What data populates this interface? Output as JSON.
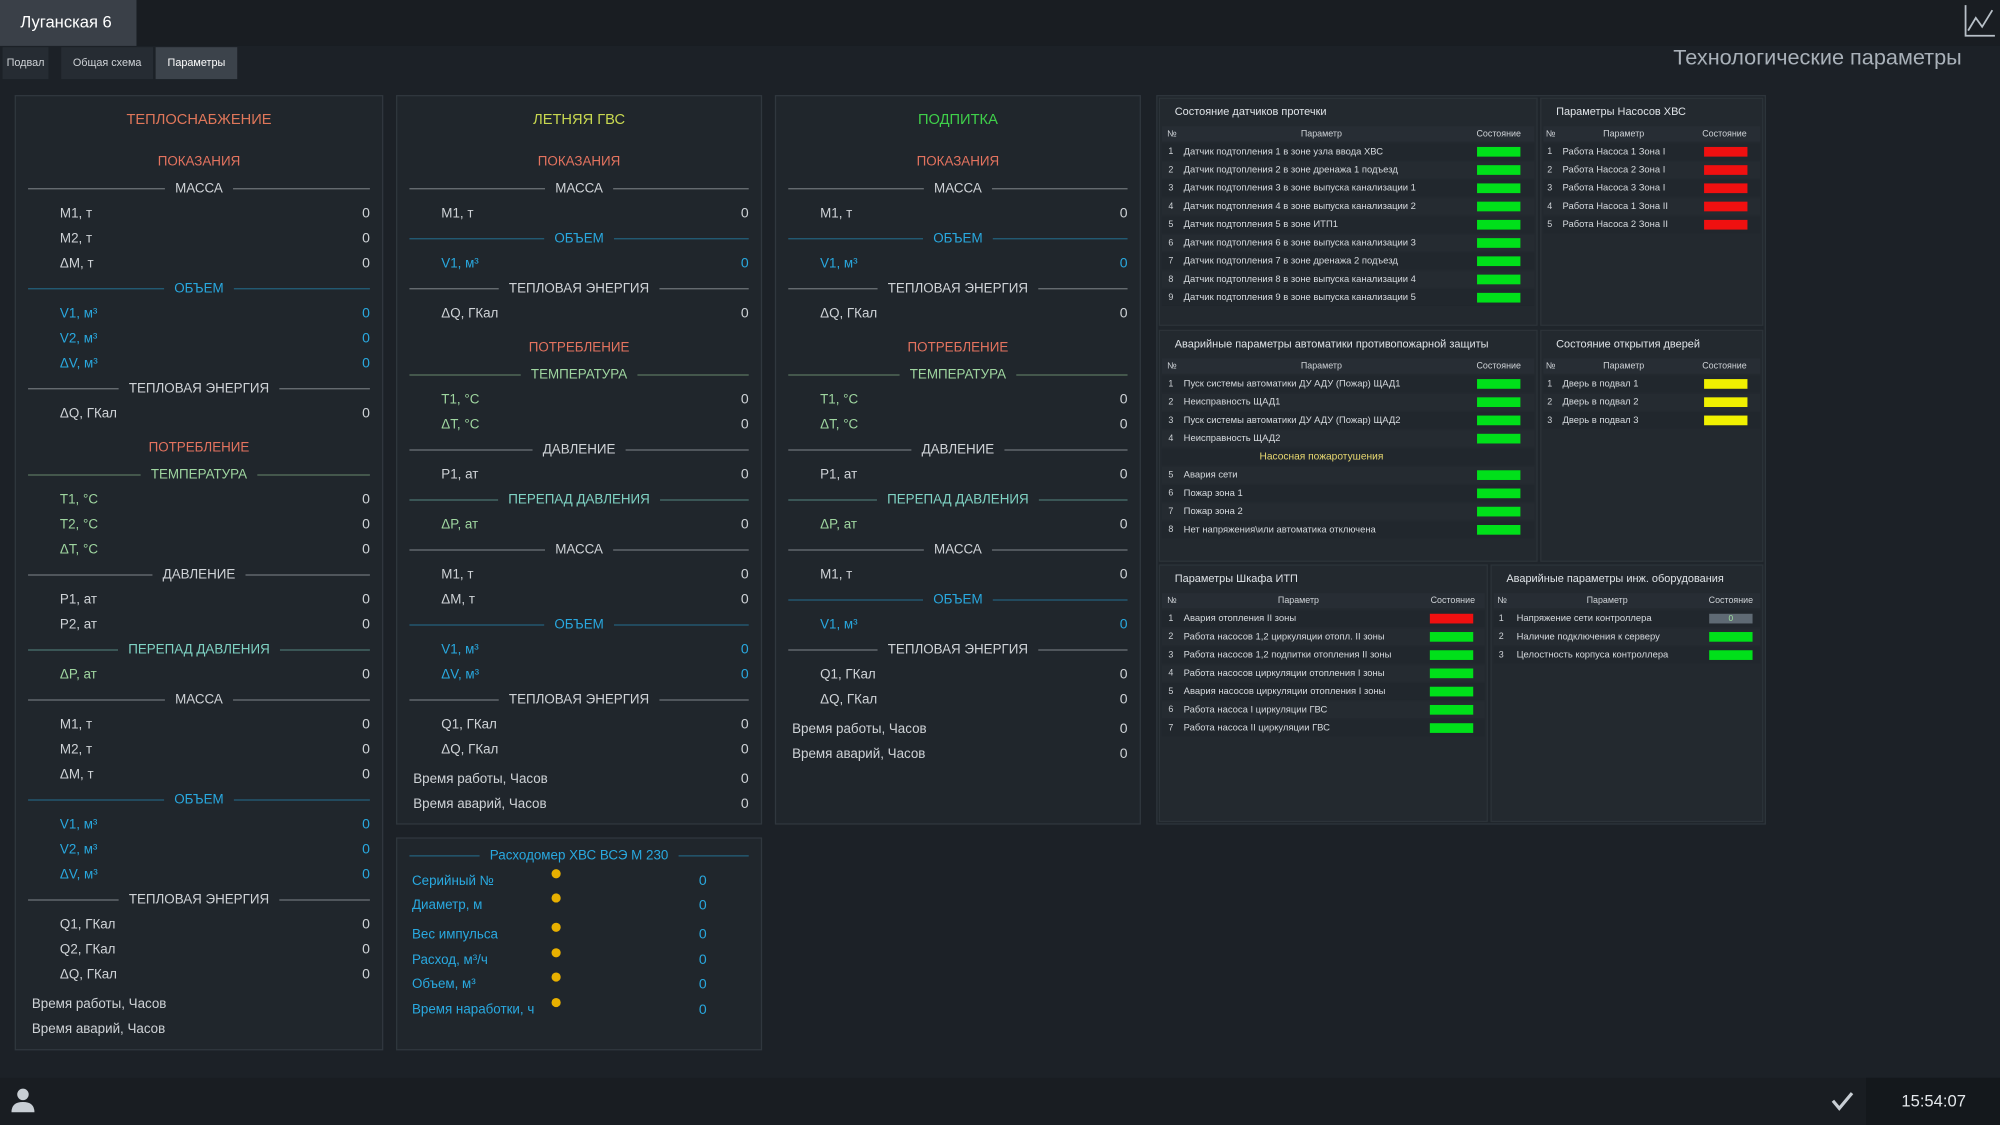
{
  "header": {
    "title": "Луганская 6",
    "page_title": "Технологические параметры"
  },
  "tabs": [
    "Подвал",
    "Общая схема",
    "Параметры"
  ],
  "panels": [
    {
      "title": "ТЕПЛОСНАБЖЕНИЕ",
      "title_color": "#e0775a",
      "rows": [
        {
          "style": "heading",
          "text": "ПОКАЗАНИЯ"
        },
        {
          "style": "divider",
          "text": "МАССА"
        },
        {
          "label": "М1, т",
          "value": 0
        },
        {
          "label": "М2, т",
          "value": 0
        },
        {
          "label": "ΔМ, т",
          "value": 0
        },
        {
          "style": "divider",
          "text": "ОБЪЕМ",
          "color": "#29a9e0"
        },
        {
          "label": "V1, м³",
          "value": 0,
          "color": "#29a9e0",
          "value_color": "#29a9e0"
        },
        {
          "label": "V2, м³",
          "value": 0,
          "color": "#29a9e0",
          "value_color": "#29a9e0"
        },
        {
          "label": "ΔV, м³",
          "value": 0,
          "color": "#29a9e0",
          "value_color": "#29a9e0"
        },
        {
          "style": "divider",
          "text": "ТЕПЛОВАЯ ЭНЕРГИЯ"
        },
        {
          "label": "ΔQ, ГКал",
          "value": 0
        },
        {
          "style": "heading",
          "text": "ПОТРЕБЛЕНИЕ"
        },
        {
          "style": "divider",
          "text": "ТЕМПЕРАТУРА",
          "color": "#9fd6a0"
        },
        {
          "label": "T1, °C",
          "value": 0,
          "color": "#9fd6a0"
        },
        {
          "label": "T2, °C",
          "value": 0,
          "color": "#9fd6a0"
        },
        {
          "label": "ΔT, °C",
          "value": 0,
          "color": "#9fd6a0"
        },
        {
          "style": "divider",
          "text": "ДАВЛЕНИЕ"
        },
        {
          "label": "P1, ат",
          "value": 0
        },
        {
          "label": "P2, ат",
          "value": 0
        },
        {
          "style": "divider",
          "text": "ПЕРЕПАД ДАВЛЕНИЯ",
          "color": "#7fd3c4"
        },
        {
          "label": "ΔP, ат",
          "value": 0,
          "color": "#9fd6a0"
        },
        {
          "style": "divider",
          "text": "МАССА"
        },
        {
          "label": "М1, т",
          "value": 0
        },
        {
          "label": "М2, т",
          "value": 0
        },
        {
          "label": "ΔМ, т",
          "value": 0
        },
        {
          "style": "divider",
          "text": "ОБЪЕМ",
          "color": "#29a9e0"
        },
        {
          "label": "V1, м³",
          "value": 0,
          "color": "#29a9e0",
          "value_color": "#29a9e0"
        },
        {
          "label": "V2, м³",
          "value": 0,
          "color": "#29a9e0",
          "value_color": "#29a9e0"
        },
        {
          "label": "ΔV, м³",
          "value": 0,
          "color": "#29a9e0",
          "value_color": "#29a9e0"
        },
        {
          "style": "divider",
          "text": "ТЕПЛОВАЯ ЭНЕРГИЯ"
        },
        {
          "label": "Q1, ГКал",
          "value": 0
        },
        {
          "label": "Q2, ГКал",
          "value": 0
        },
        {
          "label": "ΔQ, ГКал",
          "value": 0
        },
        {
          "style": "plain",
          "label": "Время работы, Часов"
        },
        {
          "style": "plain",
          "label": "Время аварий, Часов"
        }
      ]
    },
    {
      "title": "ЛЕТНЯЯ ГВС",
      "title_color": "#c8d850",
      "rows": [
        {
          "style": "heading",
          "text": "ПОКАЗАНИЯ"
        },
        {
          "style": "divider",
          "text": "МАССА"
        },
        {
          "label": "М1, т",
          "value": 0
        },
        {
          "style": "divider",
          "text": "ОБЪЕМ",
          "color": "#29a9e0"
        },
        {
          "label": "V1, м³",
          "value": 0,
          "color": "#29a9e0",
          "value_color": "#29a9e0"
        },
        {
          "style": "divider",
          "text": "ТЕПЛОВАЯ ЭНЕРГИЯ"
        },
        {
          "label": "ΔQ, ГКал",
          "value": 0
        },
        {
          "style": "heading",
          "text": "ПОТРЕБЛЕНИЕ"
        },
        {
          "style": "divider",
          "text": "ТЕМПЕРАТУРА",
          "color": "#9fd6a0"
        },
        {
          "label": "T1, °C",
          "value": 0,
          "color": "#9fd6a0"
        },
        {
          "label": "ΔT, °C",
          "value": 0,
          "color": "#9fd6a0"
        },
        {
          "style": "divider",
          "text": "ДАВЛЕНИЕ"
        },
        {
          "label": "P1, ат",
          "value": 0
        },
        {
          "style": "divider",
          "text": "ПЕРЕПАД ДАВЛЕНИЯ",
          "color": "#7fd3c4"
        },
        {
          "label": "ΔP, ат",
          "value": 0,
          "color": "#9fd6a0"
        },
        {
          "style": "divider",
          "text": "МАССА"
        },
        {
          "label": "М1, т",
          "value": 0
        },
        {
          "label": "ΔМ, т",
          "value": 0
        },
        {
          "style": "divider",
          "text": "ОБЪЕМ",
          "color": "#29a9e0"
        },
        {
          "label": "V1, м³",
          "value": 0,
          "color": "#29a9e0",
          "value_color": "#29a9e0"
        },
        {
          "label": "ΔV, м³",
          "value": 0,
          "color": "#29a9e0",
          "value_color": "#29a9e0"
        },
        {
          "style": "divider",
          "text": "ТЕПЛОВАЯ ЭНЕРГИЯ"
        },
        {
          "label": "Q1, ГКал",
          "value": 0
        },
        {
          "label": "ΔQ, ГКал",
          "value": 0
        },
        {
          "style": "plain",
          "label": "Время работы, Часов",
          "value": 0
        },
        {
          "style": "plain",
          "label": "Время аварий, Часов",
          "value": 0
        }
      ]
    },
    {
      "title": "ПОДПИТКА",
      "title_color": "#3fd04a",
      "rows": [
        {
          "style": "heading",
          "text": "ПОКАЗАНИЯ"
        },
        {
          "style": "divider",
          "text": "МАССА"
        },
        {
          "label": "М1, т",
          "value": 0
        },
        {
          "style": "divider",
          "text": "ОБЪЕМ",
          "color": "#29a9e0"
        },
        {
          "label": "V1, м³",
          "value": 0,
          "color": "#29a9e0",
          "value_color": "#29a9e0"
        },
        {
          "style": "divider",
          "text": "ТЕПЛОВАЯ ЭНЕРГИЯ"
        },
        {
          "label": "ΔQ, ГКал",
          "value": 0
        },
        {
          "style": "heading",
          "text": "ПОТРЕБЛЕНИЕ"
        },
        {
          "style": "divider",
          "text": "ТЕМПЕРАТУРА",
          "color": "#9fd6a0"
        },
        {
          "label": "T1, °C",
          "value": 0,
          "color": "#9fd6a0"
        },
        {
          "label": "ΔT, °C",
          "value": 0,
          "color": "#9fd6a0"
        },
        {
          "style": "divider",
          "text": "ДАВЛЕНИЕ"
        },
        {
          "label": "P1, ат",
          "value": 0
        },
        {
          "style": "divider",
          "text": "ПЕРЕПАД ДАВЛЕНИЯ",
          "color": "#7fd3c4"
        },
        {
          "label": "ΔP, ат",
          "value": 0,
          "color": "#9fd6a0"
        },
        {
          "style": "divider",
          "text": "МАССА"
        },
        {
          "label": "М1, т",
          "value": 0
        },
        {
          "style": "divider",
          "text": "ОБЪЕМ",
          "color": "#29a9e0"
        },
        {
          "label": "V1, м³",
          "value": 0,
          "color": "#29a9e0",
          "value_color": "#29a9e0"
        },
        {
          "style": "divider",
          "text": "ТЕПЛОВАЯ ЭНЕРГИЯ"
        },
        {
          "label": "Q1, ГКал",
          "value": 0
        },
        {
          "label": "ΔQ, ГКал",
          "value": 0
        },
        {
          "style": "plain",
          "label": "Время работы, Часов",
          "value": 0
        },
        {
          "style": "plain",
          "label": "Время аварий, Часов",
          "value": 0
        }
      ]
    }
  ],
  "flowmeter": {
    "title": "Расходомер ХВС ВСЭ М 230",
    "rows": [
      {
        "label": "Серийный №",
        "value": 0
      },
      {
        "label": "Диаметр, м",
        "value": 0
      },
      {
        "label": "Вес импульса",
        "value": 0
      },
      {
        "label": "Расход, м³/ч",
        "value": 0
      },
      {
        "label": "Объем, м³",
        "value": 0
      },
      {
        "label": "Время наработки, ч",
        "value": 0
      }
    ]
  },
  "tables": [
    {
      "title": "Состояние датчиков протечки",
      "columns": [
        "№",
        "Параметр",
        "Состояние"
      ],
      "rows": [
        {
          "n": "1",
          "param": "Датчик подтопления 1 в зоне узла ввода ХВС",
          "status_color": "#00e01a"
        },
        {
          "n": "2",
          "param": "Датчик подтопления 2  в зоне дренажа 1 подъезд",
          "status_color": "#00e01a"
        },
        {
          "n": "3",
          "param": "Датчик подтопления 3 в зоне выпуска канализации 1",
          "status_color": "#00e01a"
        },
        {
          "n": "4",
          "param": "Датчик подтопления 4 в зоне выпуска канализации 2",
          "status_color": "#00e01a"
        },
        {
          "n": "5",
          "param": "Датчик подтопления 5 в зоне ИТП1",
          "status_color": "#00e01a"
        },
        {
          "n": "6",
          "param": "Датчик подтопления 6 в зоне выпуска канализации 3",
          "status_color": "#00e01a"
        },
        {
          "n": "7",
          "param": "Датчик подтопления 7 в зоне дренажа 2 подъезд",
          "status_color": "#00e01a"
        },
        {
          "n": "8",
          "param": "Датчик подтопления 8 в зоне выпуска канализации 4",
          "status_color": "#00e01a"
        },
        {
          "n": "9",
          "param": "Датчик подтопления 9 в зоне выпуска канализации 5",
          "status_color": "#00e01a"
        }
      ]
    },
    {
      "title": "Параметры Насосов ХВС",
      "columns": [
        "№",
        "Параметр",
        "Состояние"
      ],
      "rows": [
        {
          "n": "1",
          "param": "Работа Насоса 1 Зона I",
          "status_color": "#f01010"
        },
        {
          "n": "2",
          "param": "Работа Насоса 2 Зона I",
          "status_color": "#f01010"
        },
        {
          "n": "3",
          "param": "Работа Насоса 3 Зона I",
          "status_color": "#f01010"
        },
        {
          "n": "4",
          "param": "Работа Насоса 1 Зона II",
          "status_color": "#f01010"
        },
        {
          "n": "5",
          "param": "Работа Насоса 2 Зона II",
          "status_color": "#f01010"
        }
      ]
    },
    {
      "title": "Аварийные параметры автоматики противопожарной защиты",
      "columns": [
        "№",
        "Параметр",
        "Состояние"
      ],
      "rows": [
        {
          "n": "1",
          "param": "Пуск системы автоматики ДУ АДУ (Пожар) ЩАД1",
          "status_color": "#00e01a"
        },
        {
          "n": "2",
          "param": "Неисправность ЩАД1",
          "status_color": "#00e01a"
        },
        {
          "n": "3",
          "param": "Пуск системы автоматики ДУ АДУ (Пожар) ЩАД2",
          "status_color": "#00e01a"
        },
        {
          "n": "4",
          "param": "Неисправность ЩАД2",
          "status_color": "#00e01a"
        },
        {
          "subheading": "Насосная пожаротушения"
        },
        {
          "n": "5",
          "param": "Авария сети",
          "status_color": "#00e01a"
        },
        {
          "n": "6",
          "param": "Пожар зона 1",
          "status_color": "#00e01a"
        },
        {
          "n": "7",
          "param": "Пожар зона 2",
          "status_color": "#00e01a"
        },
        {
          "n": "8",
          "param": "Нет напряжения\\или автоматика отключена",
          "status_color": "#00e01a"
        }
      ]
    },
    {
      "title": "Состояние открытия дверей",
      "columns": [
        "№",
        "Параметр",
        "Состояние"
      ],
      "rows": [
        {
          "n": "1",
          "param": "Дверь  в подвал 1",
          "status_color": "#f0f000"
        },
        {
          "n": "2",
          "param": "Дверь  в подвал 2",
          "status_color": "#f0f000"
        },
        {
          "n": "3",
          "param": "Дверь  в подвал 3",
          "status_color": "#f0f000"
        }
      ]
    },
    {
      "title": "Параметры Шкафа  ИТП",
      "columns": [
        "№",
        "Параметр",
        "Состояние"
      ],
      "rows": [
        {
          "n": "1",
          "param": "Авария отопления II зоны",
          "status_color": "#f01010"
        },
        {
          "n": "2",
          "param": "Работа насосов 1,2 циркуляции отопл. II зоны",
          "status_color": "#00e01a"
        },
        {
          "n": "3",
          "param": "Работа насосов 1,2 подпитки отопления II зоны",
          "status_color": "#00e01a"
        },
        {
          "n": "4",
          "param": "Работа насосов циркуляции отопления I зоны",
          "status_color": "#00e01a"
        },
        {
          "n": "5",
          "param": "Авария насосов циркуляции отопления I зоны",
          "status_color": "#00e01a"
        },
        {
          "n": "6",
          "param": "Работа насоса I циркуляции ГВС",
          "status_color": "#00e01a"
        },
        {
          "n": "7",
          "param": "Работа насоса II циркуляции ГВС",
          "status_color": "#00e01a"
        }
      ]
    },
    {
      "title": "Аварийные параметры инж. оборудования",
      "columns": [
        "№",
        "Параметр",
        "Состояние"
      ],
      "rows": [
        {
          "n": "1",
          "param": "Напряжение сети контроллера",
          "status_color": "#5f6a74",
          "status_text": "0"
        },
        {
          "n": "2",
          "param": "Наличие подключения к серверу",
          "status_color": "#00e01a"
        },
        {
          "n": "3",
          "param": "Целостность корпуса контроллера",
          "status_color": "#00e01a"
        }
      ]
    }
  ],
  "footer": {
    "time": "15:54:07"
  }
}
